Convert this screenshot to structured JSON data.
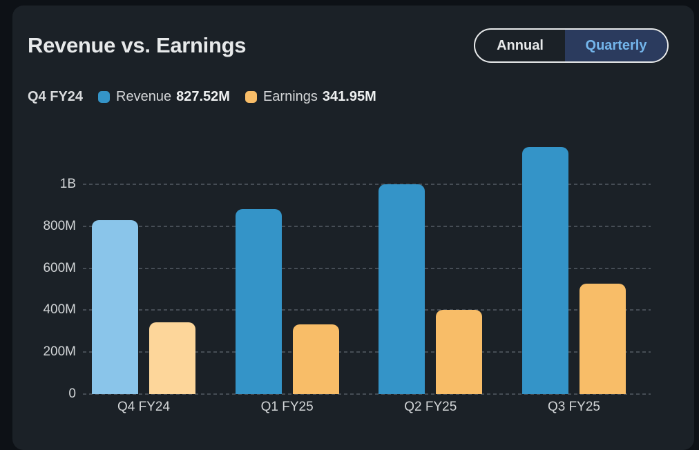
{
  "theme": {
    "outer_bg": "#0d1116",
    "card_bg": "#1b2127",
    "grid_color": "#464d55",
    "accent_blue": "#3494c8",
    "accent_orange": "#f8bd68",
    "toggle_selected_bg": "#2b3b5e",
    "toggle_selected_text": "#74b6ec"
  },
  "header": {
    "title": "Revenue vs. Earnings",
    "toggle": {
      "annual_label": "Annual",
      "quarterly_label": "Quarterly",
      "selected": "Quarterly"
    }
  },
  "legend": {
    "period": "Q4 FY24",
    "items": [
      {
        "name": "Revenue",
        "value": "827.52M",
        "color": "#3494c8"
      },
      {
        "name": "Earnings",
        "value": "341.95M",
        "color": "#f8bd68"
      }
    ]
  },
  "chart_data": {
    "type": "bar",
    "title": "Revenue vs. Earnings",
    "categories": [
      "Q4 FY24",
      "Q1 FY25",
      "Q2 FY25",
      "Q3 FY25"
    ],
    "series": [
      {
        "name": "Revenue",
        "color": "#3494c8",
        "highlight_color": "#8ac5ea",
        "values_m": [
          827.52,
          881,
          1000,
          1178
        ]
      },
      {
        "name": "Earnings",
        "color": "#f8bd68",
        "highlight_color": "#fdd69a",
        "values_m": [
          341.95,
          332,
          401,
          526
        ]
      }
    ],
    "highlighted_category": "Q4 FY24",
    "yticks": [
      {
        "value_m": 0,
        "label": "0"
      },
      {
        "value_m": 200,
        "label": "200M"
      },
      {
        "value_m": 400,
        "label": "400M"
      },
      {
        "value_m": 600,
        "label": "600M"
      },
      {
        "value_m": 800,
        "label": "800M"
      },
      {
        "value_m": 1000,
        "label": "1B"
      }
    ],
    "ylim_m": [
      0,
      1200
    ],
    "grid": "dashed-horizontal",
    "legend_position": "top"
  }
}
